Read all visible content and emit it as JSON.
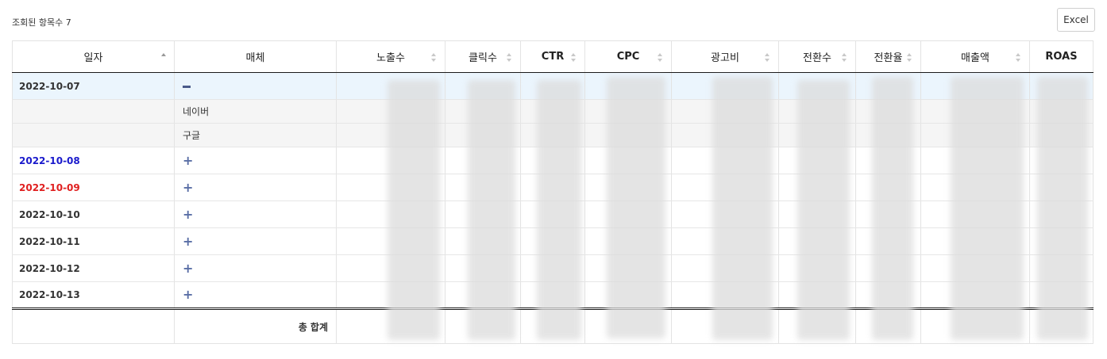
{
  "summary": {
    "label": "조회된 항목수 7"
  },
  "toolbar": {
    "excel_label": "Excel"
  },
  "table": {
    "columns": [
      {
        "label": "일자",
        "sort": "asc"
      },
      {
        "label": "매체",
        "sort": "none"
      },
      {
        "label": "노출수",
        "sort": "both"
      },
      {
        "label": "클릭수",
        "sort": "both"
      },
      {
        "label": "CTR",
        "sort": "both"
      },
      {
        "label": "CPC",
        "sort": "both"
      },
      {
        "label": "광고비",
        "sort": "both"
      },
      {
        "label": "전환수",
        "sort": "both"
      },
      {
        "label": "전환율",
        "sort": "both"
      },
      {
        "label": "매출액",
        "sort": "both"
      },
      {
        "label": "ROAS",
        "sort": "none"
      }
    ],
    "rows": [
      {
        "date": "2022-10-07",
        "date_color": "#333333",
        "expanded": true,
        "toggle": "minus-icon",
        "children": [
          "네이버",
          "구글"
        ]
      },
      {
        "date": "2022-10-08",
        "date_color": "#1a1acc",
        "expanded": false,
        "toggle": "plus-icon"
      },
      {
        "date": "2022-10-09",
        "date_color": "#e02020",
        "expanded": false,
        "toggle": "plus-icon"
      },
      {
        "date": "2022-10-10",
        "date_color": "#333333",
        "expanded": false,
        "toggle": "plus-icon"
      },
      {
        "date": "2022-10-11",
        "date_color": "#333333",
        "expanded": false,
        "toggle": "plus-icon"
      },
      {
        "date": "2022-10-12",
        "date_color": "#333333",
        "expanded": false,
        "toggle": "plus-icon"
      },
      {
        "date": "2022-10-13",
        "date_color": "#333333",
        "expanded": false,
        "toggle": "plus-icon"
      }
    ],
    "total_label": "총 합계"
  }
}
